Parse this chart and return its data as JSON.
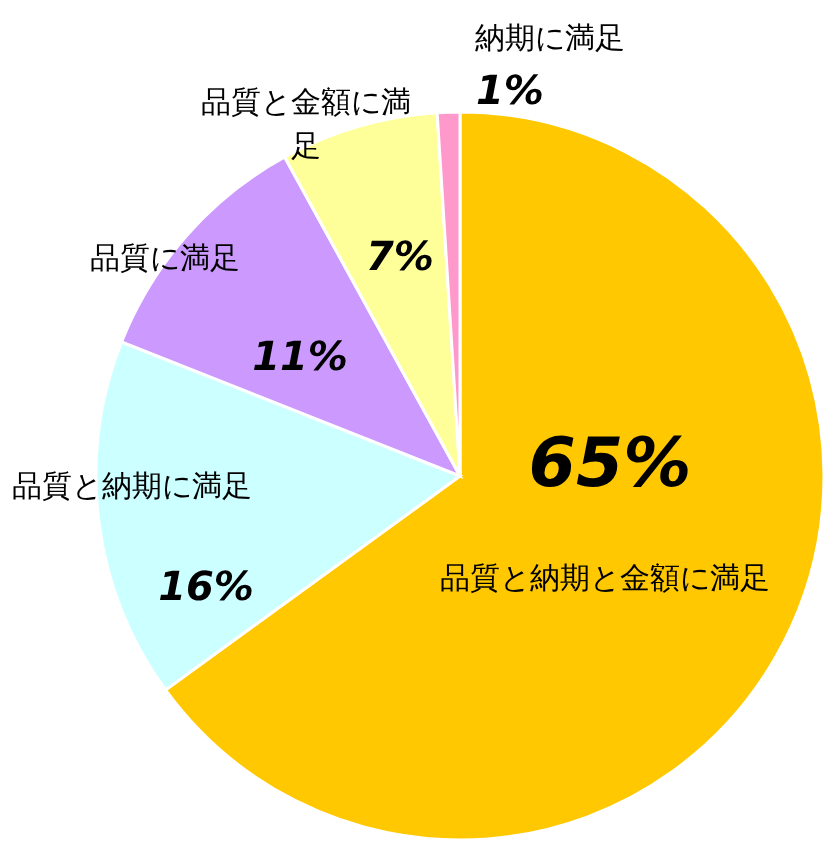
{
  "chart_data": {
    "type": "pie",
    "categories": [
      "品質と納期と金額に満足",
      "品質と納期に満足",
      "品質に満足",
      "品質と金額に満足",
      "納期に満足"
    ],
    "values": [
      65,
      16,
      11,
      7,
      1
    ],
    "colors": [
      "#ffc800",
      "#ccffff",
      "#cc99ff",
      "#ffff99",
      "#ff99cc"
    ],
    "value_labels": [
      "65%",
      "16%",
      "11%",
      "7%",
      "1%"
    ],
    "legend": false
  }
}
